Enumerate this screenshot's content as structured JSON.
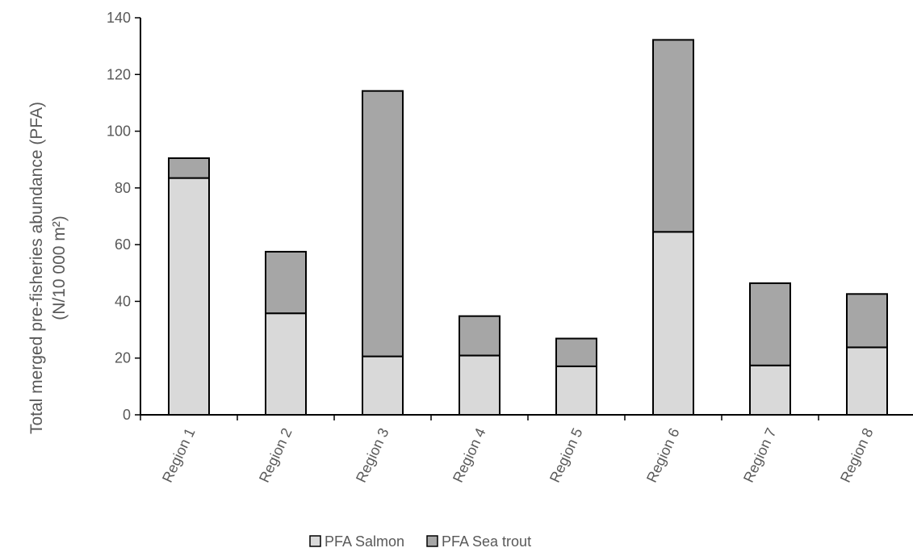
{
  "chart_data": {
    "type": "bar",
    "stacked": true,
    "categories": [
      "Region 1",
      "Region 2",
      "Region 3",
      "Region 4",
      "Region 5",
      "Region 6",
      "Region 7",
      "Region 8"
    ],
    "series": [
      {
        "name": "PFA Salmon",
        "values": [
          83.5,
          35.8,
          20.6,
          20.9,
          17.1,
          64.5,
          17.4,
          23.8
        ],
        "color": "#d9d9d9"
      },
      {
        "name": "PFA Sea trout",
        "values": [
          7.0,
          21.7,
          93.6,
          13.9,
          9.8,
          67.7,
          29.0,
          18.8
        ],
        "color": "#a6a6a6"
      }
    ],
    "title": "",
    "xlabel": "",
    "ylabel_line1": "Total merged  pre-fisheries abundance (PFA)",
    "ylabel_line2": "(N/10 000 m²)",
    "ylim": [
      0,
      140
    ],
    "yticks": [
      0,
      20,
      40,
      60,
      80,
      100,
      120,
      140
    ],
    "grid": false,
    "legend_position": "bottom"
  }
}
